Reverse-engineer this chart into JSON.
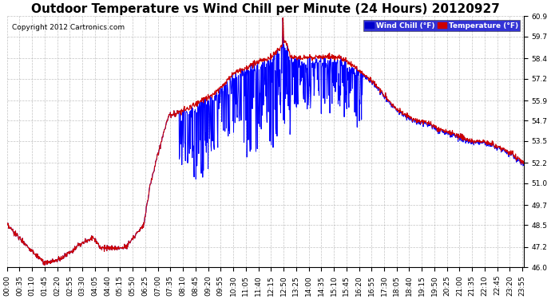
{
  "title": "Outdoor Temperature vs Wind Chill per Minute (24 Hours) 20120927",
  "copyright_text": "Copyright 2012 Cartronics.com",
  "legend_wind_chill": "Wind Chill (°F)",
  "legend_temperature": "Temperature (°F)",
  "wind_chill_color": "#0000ff",
  "temperature_color": "#cc0000",
  "legend_wc_bg": "#0000cc",
  "legend_temp_bg": "#cc0000",
  "ylim_min": 46.0,
  "ylim_max": 60.9,
  "yticks": [
    46.0,
    47.2,
    48.5,
    49.7,
    51.0,
    52.2,
    53.5,
    54.7,
    55.9,
    57.2,
    58.4,
    59.7,
    60.9
  ],
  "background_color": "#ffffff",
  "plot_bg_color": "#ffffff",
  "grid_color": "#aaaaaa",
  "title_fontsize": 11,
  "tick_fontsize": 6.5,
  "n_minutes": 1440,
  "x_tick_interval": 35
}
